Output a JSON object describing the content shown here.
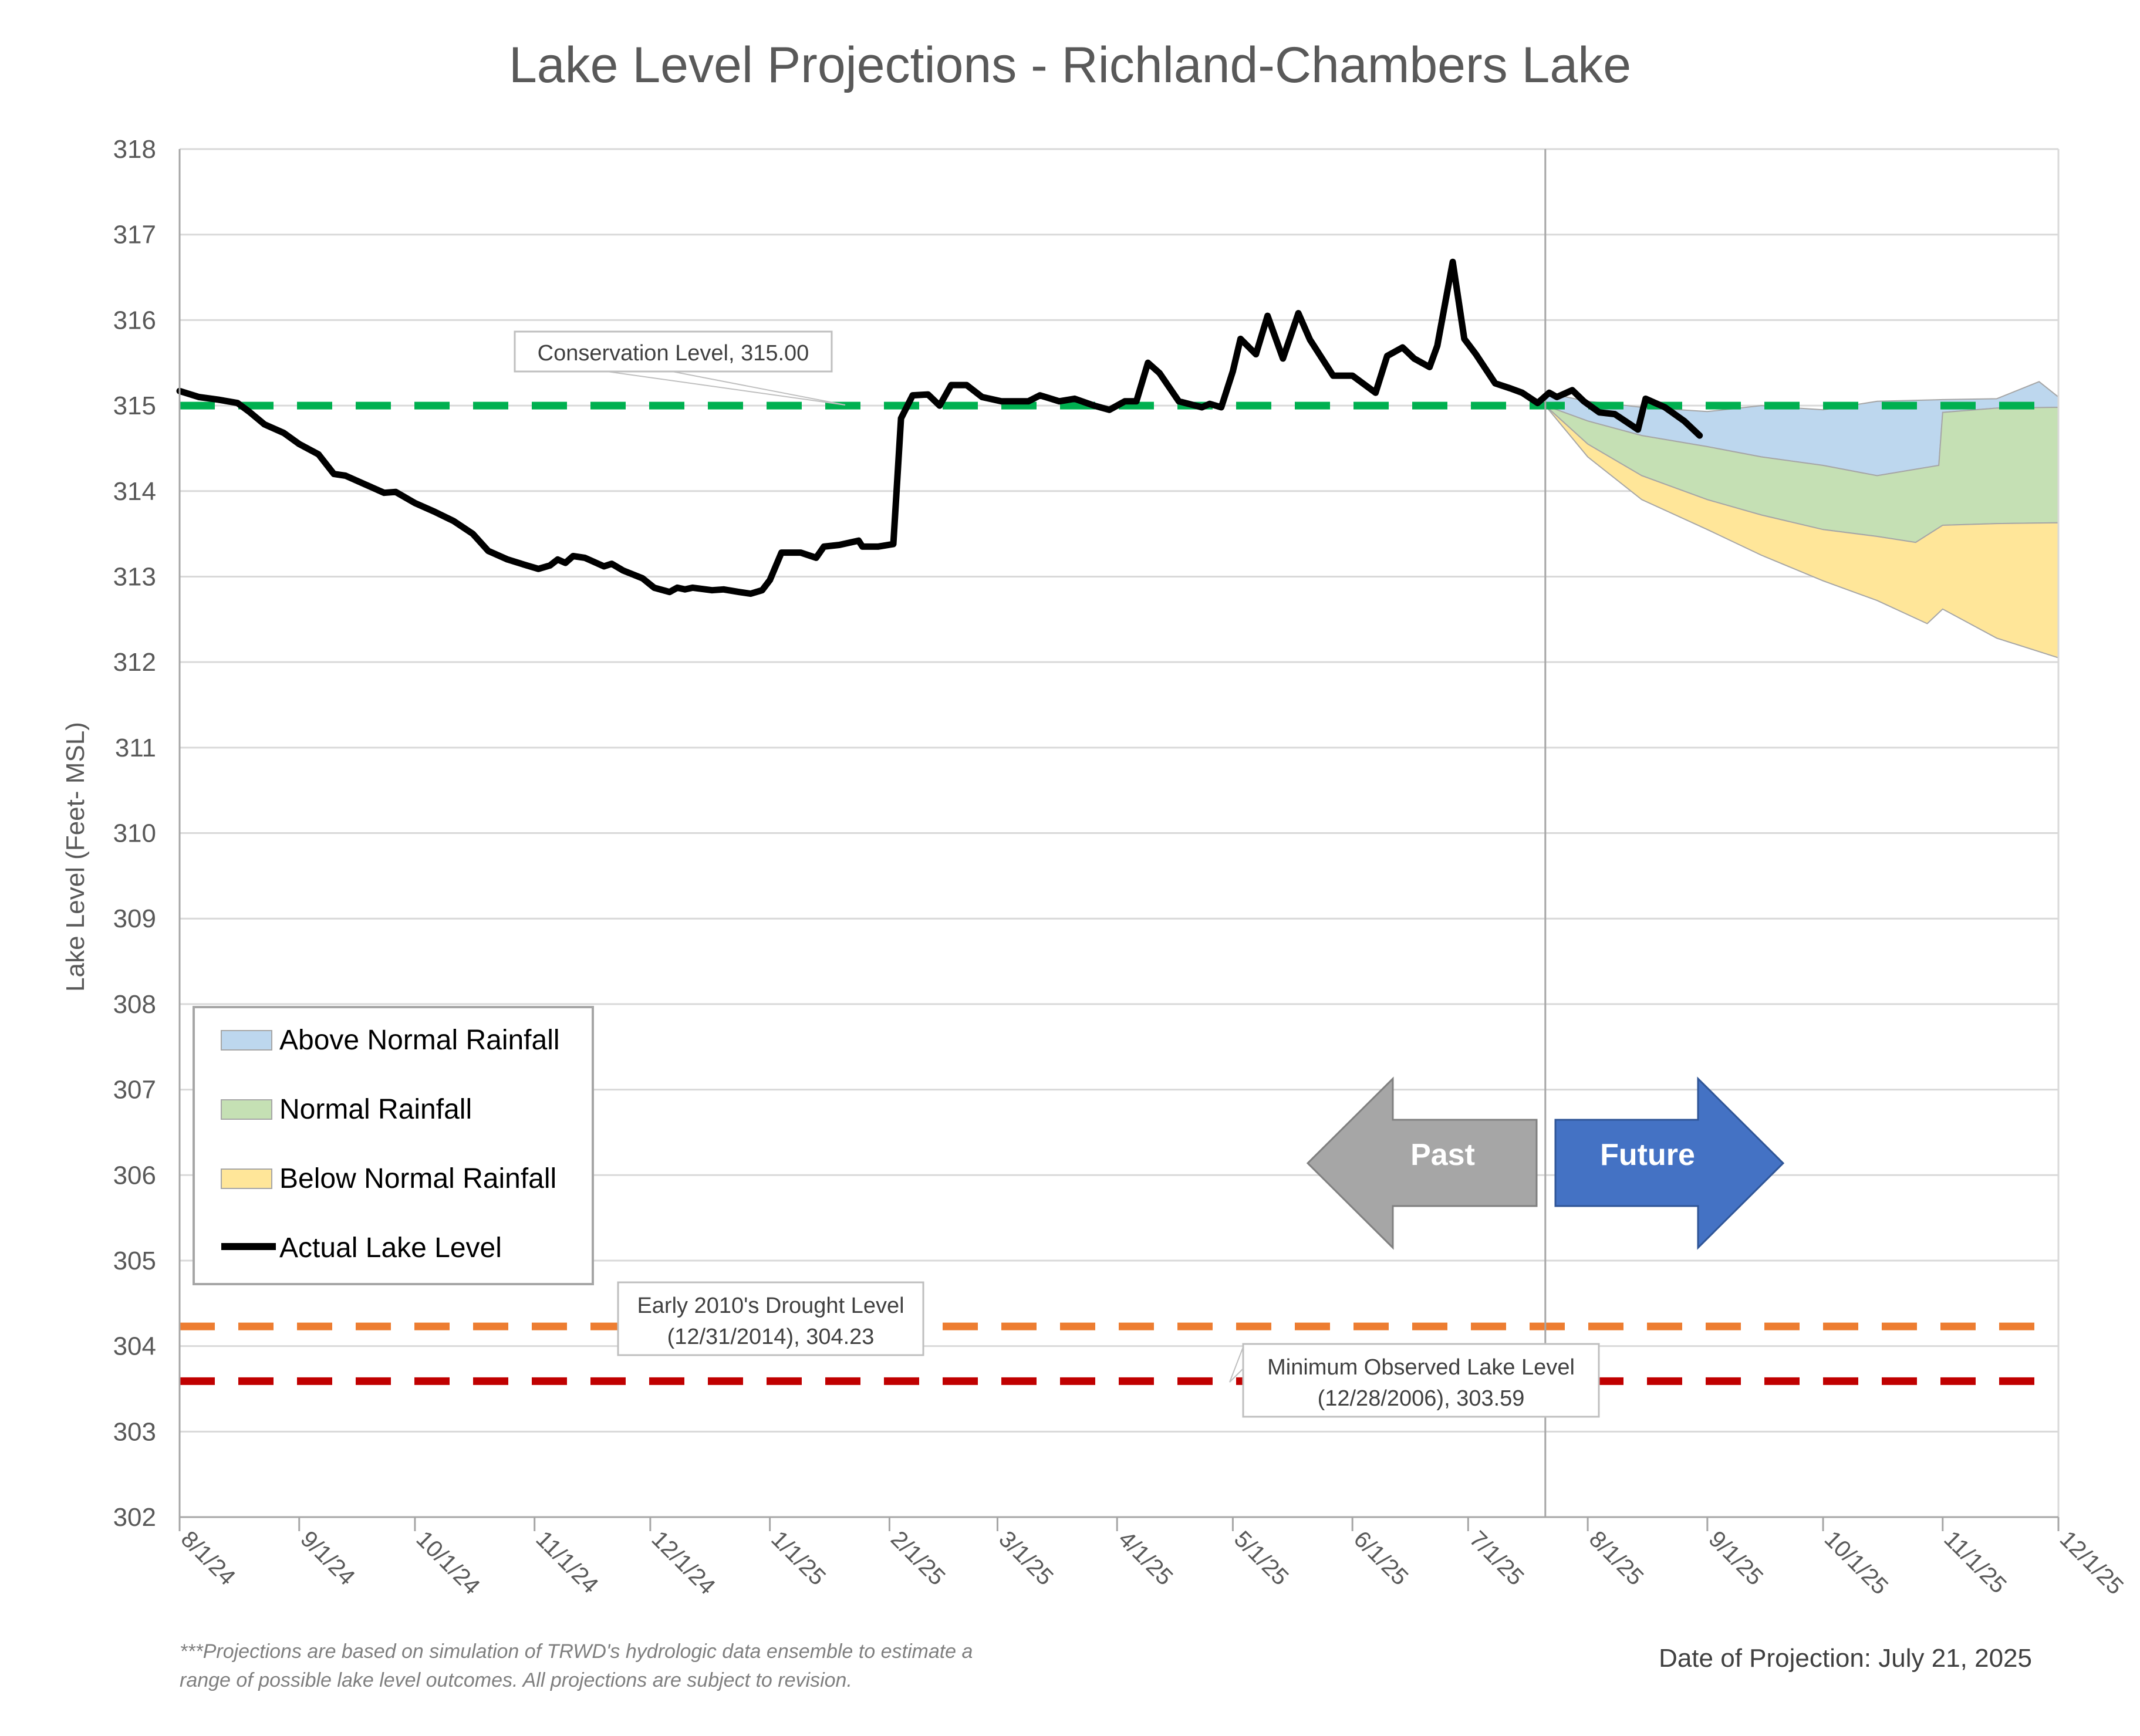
{
  "chart_data": {
    "type": "area",
    "title": "Lake Level Projections - Richland-Chambers Lake",
    "ylabel": "Lake Level (Feet- MSL)",
    "xlabel": "",
    "ylim": [
      302,
      318
    ],
    "xlim": [
      "2024-08-01",
      "2025-12-01"
    ],
    "yticks": [
      "302",
      "303",
      "304",
      "305",
      "306",
      "307",
      "308",
      "309",
      "310",
      "311",
      "312",
      "313",
      "314",
      "315",
      "316",
      "317",
      "318"
    ],
    "xticks": [
      {
        "date": "2024-08-01",
        "label": "8/1/24"
      },
      {
        "date": "2024-09-01",
        "label": "9/1/24"
      },
      {
        "date": "2024-10-01",
        "label": "10/1/24"
      },
      {
        "date": "2024-11-01",
        "label": "11/1/24"
      },
      {
        "date": "2024-12-01",
        "label": "12/1/24"
      },
      {
        "date": "2025-01-01",
        "label": "1/1/25"
      },
      {
        "date": "2025-02-01",
        "label": "2/1/25"
      },
      {
        "date": "2025-03-01",
        "label": "3/1/25"
      },
      {
        "date": "2025-04-01",
        "label": "4/1/25"
      },
      {
        "date": "2025-05-01",
        "label": "5/1/25"
      },
      {
        "date": "2025-06-01",
        "label": "6/1/25"
      },
      {
        "date": "2025-07-01",
        "label": "7/1/25"
      },
      {
        "date": "2025-08-01",
        "label": "8/1/25"
      },
      {
        "date": "2025-09-01",
        "label": "9/1/25"
      },
      {
        "date": "2025-10-01",
        "label": "10/1/25"
      },
      {
        "date": "2025-11-01",
        "label": "11/1/25"
      },
      {
        "date": "2025-12-01",
        "label": "12/1/25"
      }
    ],
    "grid": true,
    "projection_divider_date": "2025-07-21",
    "reference_lines": [
      {
        "label": "Conservation Level, 315.00",
        "value": 315.0,
        "color": "#00B050"
      },
      {
        "label_line1": "Early 2010's Drought Level",
        "label_line2": "(12/31/2014), 304.23",
        "value": 304.23,
        "color": "#ED7D31"
      },
      {
        "label_line1": "Minimum Observed Lake Level",
        "label_line2": "(12/28/2006), 303.59",
        "value": 303.59,
        "color": "#C00000"
      }
    ],
    "actual": {
      "name": "Actual Lake Level",
      "color": "#000000",
      "points": [
        [
          "2024-08-01",
          315.17
        ],
        [
          "2024-08-06",
          315.1
        ],
        [
          "2024-08-11",
          315.07
        ],
        [
          "2024-08-16",
          315.03
        ],
        [
          "2024-08-19",
          314.93
        ],
        [
          "2024-08-23",
          314.78
        ],
        [
          "2024-08-28",
          314.68
        ],
        [
          "2024-09-01",
          314.55
        ],
        [
          "2024-09-06",
          314.43
        ],
        [
          "2024-09-10",
          314.2
        ],
        [
          "2024-09-13",
          314.18
        ],
        [
          "2024-09-18",
          314.08
        ],
        [
          "2024-09-23",
          313.98
        ],
        [
          "2024-09-26",
          313.99
        ],
        [
          "2024-10-01",
          313.86
        ],
        [
          "2024-10-06",
          313.76
        ],
        [
          "2024-10-11",
          313.65
        ],
        [
          "2024-10-16",
          313.5
        ],
        [
          "2024-10-20",
          313.3
        ],
        [
          "2024-10-25",
          313.2
        ],
        [
          "2024-10-30",
          313.13
        ],
        [
          "2024-11-02",
          313.09
        ],
        [
          "2024-11-05",
          313.13
        ],
        [
          "2024-11-07",
          313.2
        ],
        [
          "2024-11-09",
          313.16
        ],
        [
          "2024-11-11",
          313.24
        ],
        [
          "2024-11-14",
          313.22
        ],
        [
          "2024-11-19",
          313.12
        ],
        [
          "2024-11-21",
          313.15
        ],
        [
          "2024-11-24",
          313.07
        ],
        [
          "2024-11-29",
          312.98
        ],
        [
          "2024-12-02",
          312.87
        ],
        [
          "2024-12-06",
          312.82
        ],
        [
          "2024-12-08",
          312.87
        ],
        [
          "2024-12-10",
          312.85
        ],
        [
          "2024-12-12",
          312.87
        ],
        [
          "2024-12-17",
          312.84
        ],
        [
          "2024-12-20",
          312.85
        ],
        [
          "2024-12-24",
          312.82
        ],
        [
          "2024-12-27",
          312.8
        ],
        [
          "2024-12-30",
          312.84
        ],
        [
          "2025-01-01",
          312.96
        ],
        [
          "2025-01-04",
          313.28
        ],
        [
          "2025-01-09",
          313.28
        ],
        [
          "2025-01-13",
          313.22
        ],
        [
          "2025-01-15",
          313.35
        ],
        [
          "2025-01-19",
          313.37
        ],
        [
          "2025-01-24",
          313.42
        ],
        [
          "2025-01-25",
          313.35
        ],
        [
          "2025-01-29",
          313.35
        ],
        [
          "2025-02-02",
          313.38
        ],
        [
          "2025-02-04",
          314.85
        ],
        [
          "2025-02-07",
          315.12
        ],
        [
          "2025-02-11",
          315.13
        ],
        [
          "2025-02-14",
          315.0
        ],
        [
          "2025-02-17",
          315.24
        ],
        [
          "2025-02-21",
          315.24
        ],
        [
          "2025-02-25",
          315.1
        ],
        [
          "2025-03-02",
          315.05
        ],
        [
          "2025-03-09",
          315.05
        ],
        [
          "2025-03-12",
          315.12
        ],
        [
          "2025-03-17",
          315.05
        ],
        [
          "2025-03-21",
          315.08
        ],
        [
          "2025-03-26",
          315.0
        ],
        [
          "2025-03-30",
          314.95
        ],
        [
          "2025-04-03",
          315.05
        ],
        [
          "2025-04-06",
          315.05
        ],
        [
          "2025-04-09",
          315.5
        ],
        [
          "2025-04-12",
          315.38
        ],
        [
          "2025-04-17",
          315.05
        ],
        [
          "2025-04-23",
          314.98
        ],
        [
          "2025-04-25",
          315.02
        ],
        [
          "2025-04-28",
          314.98
        ],
        [
          "2025-05-01",
          315.4
        ],
        [
          "2025-05-03",
          315.78
        ],
        [
          "2025-05-07",
          315.6
        ],
        [
          "2025-05-10",
          316.05
        ],
        [
          "2025-05-12",
          315.8
        ],
        [
          "2025-05-14",
          315.55
        ],
        [
          "2025-05-18",
          316.08
        ],
        [
          "2025-05-21",
          315.77
        ],
        [
          "2025-05-27",
          315.35
        ],
        [
          "2025-06-01",
          315.35
        ],
        [
          "2025-06-07",
          315.15
        ],
        [
          "2025-06-10",
          315.58
        ],
        [
          "2025-06-14",
          315.68
        ],
        [
          "2025-06-17",
          315.55
        ],
        [
          "2025-06-21",
          315.45
        ],
        [
          "2025-06-23",
          315.7
        ],
        [
          "2025-06-27",
          316.68
        ],
        [
          "2025-06-30",
          315.78
        ],
        [
          "2025-07-03",
          315.6
        ],
        [
          "2025-07-08",
          315.26
        ],
        [
          "2025-07-12",
          315.2
        ],
        [
          "2025-07-15",
          315.15
        ],
        [
          "2025-07-19",
          315.03
        ],
        [
          "2025-07-22",
          315.15
        ],
        [
          "2025-07-24",
          315.1
        ],
        [
          "2025-07-28",
          315.18
        ],
        [
          "2025-07-31",
          315.05
        ],
        [
          "2025-08-04",
          314.92
        ],
        [
          "2025-08-08",
          314.9
        ],
        [
          "2025-08-12",
          314.78
        ],
        [
          "2025-08-14",
          314.72
        ],
        [
          "2025-08-16",
          315.08
        ],
        [
          "2025-08-21",
          314.98
        ],
        [
          "2025-08-26",
          314.82
        ],
        [
          "2025-08-30",
          314.65
        ]
      ]
    },
    "bands": [
      {
        "name": "Above Normal Rainfall",
        "color": "#BDD7EE",
        "upper": [
          [
            "2025-07-21",
            315.15
          ],
          [
            "2025-08-01",
            315.05
          ],
          [
            "2025-08-15",
            314.98
          ],
          [
            "2025-09-01",
            314.93
          ],
          [
            "2025-09-15",
            315.0
          ],
          [
            "2025-10-01",
            314.95
          ],
          [
            "2025-10-15",
            315.05
          ],
          [
            "2025-11-01",
            315.07
          ],
          [
            "2025-11-15",
            315.08
          ],
          [
            "2025-11-26",
            315.28
          ],
          [
            "2025-12-01",
            315.1
          ]
        ],
        "lower": [
          [
            "2025-07-21",
            315.0
          ],
          [
            "2025-08-01",
            314.82
          ],
          [
            "2025-08-15",
            314.65
          ],
          [
            "2025-09-01",
            314.52
          ],
          [
            "2025-09-15",
            314.4
          ],
          [
            "2025-10-01",
            314.3
          ],
          [
            "2025-10-15",
            314.18
          ],
          [
            "2025-10-31",
            314.3
          ],
          [
            "2025-11-01",
            314.92
          ],
          [
            "2025-11-15",
            314.97
          ],
          [
            "2025-12-01",
            314.98
          ]
        ]
      },
      {
        "name": "Normal Rainfall",
        "color": "#C5E0B4",
        "upper": [
          [
            "2025-07-21",
            315.0
          ],
          [
            "2025-08-01",
            314.82
          ],
          [
            "2025-08-15",
            314.65
          ],
          [
            "2025-09-01",
            314.52
          ],
          [
            "2025-09-15",
            314.4
          ],
          [
            "2025-10-01",
            314.3
          ],
          [
            "2025-10-15",
            314.18
          ],
          [
            "2025-10-31",
            314.3
          ],
          [
            "2025-11-01",
            314.92
          ],
          [
            "2025-11-15",
            314.97
          ],
          [
            "2025-12-01",
            314.98
          ]
        ],
        "lower": [
          [
            "2025-07-21",
            315.0
          ],
          [
            "2025-08-01",
            314.55
          ],
          [
            "2025-08-15",
            314.18
          ],
          [
            "2025-09-01",
            313.9
          ],
          [
            "2025-09-15",
            313.72
          ],
          [
            "2025-10-01",
            313.55
          ],
          [
            "2025-10-15",
            313.47
          ],
          [
            "2025-10-25",
            313.4
          ],
          [
            "2025-11-01",
            313.6
          ],
          [
            "2025-11-15",
            313.62
          ],
          [
            "2025-12-01",
            313.63
          ]
        ]
      },
      {
        "name": "Below Normal Rainfall",
        "color": "#FFE699",
        "upper": [
          [
            "2025-07-21",
            315.0
          ],
          [
            "2025-08-01",
            314.55
          ],
          [
            "2025-08-15",
            314.18
          ],
          [
            "2025-09-01",
            313.9
          ],
          [
            "2025-09-15",
            313.72
          ],
          [
            "2025-10-01",
            313.55
          ],
          [
            "2025-10-15",
            313.47
          ],
          [
            "2025-10-25",
            313.4
          ],
          [
            "2025-11-01",
            313.6
          ],
          [
            "2025-11-15",
            313.62
          ],
          [
            "2025-12-01",
            313.63
          ]
        ],
        "lower": [
          [
            "2025-07-21",
            315.0
          ],
          [
            "2025-08-01",
            314.4
          ],
          [
            "2025-08-15",
            313.9
          ],
          [
            "2025-09-01",
            313.55
          ],
          [
            "2025-09-15",
            313.25
          ],
          [
            "2025-10-01",
            312.95
          ],
          [
            "2025-10-15",
            312.72
          ],
          [
            "2025-10-28",
            312.45
          ],
          [
            "2025-11-01",
            312.62
          ],
          [
            "2025-11-15",
            312.28
          ],
          [
            "2025-12-01",
            312.05
          ]
        ]
      }
    ],
    "legend": {
      "placement": "bottom-left",
      "entries": [
        "Above Normal Rainfall",
        "Normal Rainfall",
        "Below Normal Rainfall",
        "Actual Lake Level"
      ]
    },
    "annotations": {
      "past_label": "Past",
      "future_label": "Future",
      "footnote_line1": "***Projections are based on simulation of TRWD's hydrologic data ensemble to estimate a",
      "footnote_line2": "range of possible lake level outcomes.  All projections are subject to revision.",
      "projection_date": "Date of Projection: July 21, 2025"
    },
    "colors": {
      "grid": "#D9D9D9",
      "axis": "#A6A6A6",
      "past_arrow": "#A6A6A6",
      "future_arrow": "#4472C4"
    }
  }
}
